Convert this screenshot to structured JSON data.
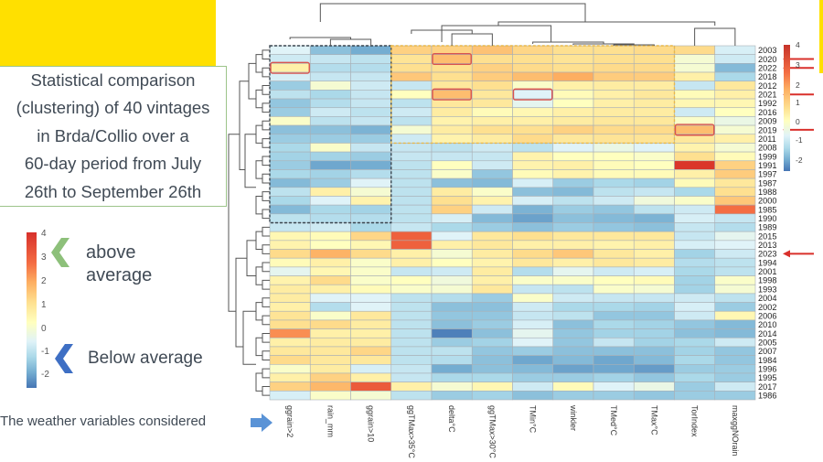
{
  "slide": {
    "description": "Statistical comparison\n(clustering) of 40 vintages\nin Brda/Collio over a\n60-day period from July\n26th to September 26th",
    "legend_above": "above\naverage",
    "legend_below": "Below average",
    "variables_note": "The weather variables considered",
    "legend_ticks": [
      "4",
      "3",
      "2",
      "1",
      "0",
      "-1",
      "-2"
    ],
    "colors": {
      "accent_yellow": "#ffe000",
      "box_border": "#9cc48a",
      "above_chevron": "#8dc07a",
      "below_chevron": "#3e6fc4",
      "note_arrow": "#5a93d6",
      "highlight_red": "#d9302b"
    }
  },
  "chart_data": {
    "type": "heatmap",
    "title": "",
    "xlabel": "",
    "ylabel": "",
    "color_scale": {
      "min": -2.5,
      "max": 4,
      "ticks": [
        4,
        3,
        2,
        1,
        0,
        -1,
        -2
      ],
      "palette": "RdYlBu reversed"
    },
    "columns": [
      "ggrain>2",
      "rain_mm",
      "ggrain>10",
      "ggTMax>35°C",
      "delta°C",
      "ggTMax>30°C",
      "TMin°C",
      "winkler",
      "TMed°C",
      "TMax°C",
      "TorIndex",
      "maxggNOrain"
    ],
    "rows": [
      "2003",
      "2020",
      "2022",
      "2018",
      "2012",
      "2021",
      "1992",
      "2016",
      "2009",
      "2019",
      "2011",
      "2008",
      "1999",
      "1991",
      "1997",
      "1987",
      "1988",
      "2000",
      "1985",
      "1990",
      "1989",
      "2015",
      "2013",
      "2023",
      "1994",
      "2001",
      "1998",
      "1993",
      "2004",
      "2002",
      "2006",
      "2010",
      "2014",
      "2005",
      "2007",
      "1984",
      "1996",
      "1995",
      "2017",
      "1986"
    ],
    "values": [
      [
        -0.2,
        -1.2,
        -1.5,
        1.5,
        1.5,
        1.8,
        1.4,
        1.2,
        1.2,
        1.3,
        1.3,
        -0.3
      ],
      [
        -0.4,
        -0.5,
        -0.6,
        1.1,
        1.9,
        1.2,
        1.2,
        1.1,
        1.2,
        1.2,
        0.2,
        -0.4
      ],
      [
        0.8,
        -0.7,
        -0.7,
        1.2,
        1.2,
        1.5,
        1.3,
        1.2,
        1.3,
        1.3,
        0.2,
        -1.3
      ],
      [
        -0.3,
        -0.5,
        -0.5,
        1.7,
        1.2,
        1.6,
        1.9,
        2.2,
        1.6,
        1.6,
        0.8,
        -0.8
      ],
      [
        -1.0,
        0.2,
        -0.4,
        -0.5,
        1.0,
        1.2,
        0.3,
        0.8,
        0.9,
        0.9,
        -0.5,
        1.0
      ],
      [
        -0.6,
        -0.8,
        -0.5,
        0.4,
        1.9,
        1.0,
        -0.2,
        0.5,
        0.8,
        1.0,
        0.5,
        0.8
      ],
      [
        -1.1,
        -0.7,
        -0.5,
        -0.6,
        1.0,
        1.0,
        -0.1,
        0.4,
        0.8,
        0.9,
        0.6,
        0.6
      ],
      [
        -1.0,
        -0.4,
        -0.6,
        -0.4,
        0.9,
        0.5,
        0.6,
        0.8,
        0.9,
        0.9,
        -0.4,
        0.4
      ],
      [
        0.3,
        -0.6,
        -0.5,
        -0.6,
        0.7,
        0.8,
        0.8,
        0.9,
        1.0,
        1.0,
        0.3,
        0.0
      ],
      [
        -1.2,
        -1.2,
        -1.4,
        0.2,
        0.9,
        1.2,
        1.2,
        1.5,
        1.3,
        1.3,
        1.9,
        0.2
      ],
      [
        -1.0,
        -1.0,
        -1.0,
        -0.4,
        0.7,
        0.9,
        1.3,
        1.0,
        1.1,
        1.1,
        1.0,
        0.8
      ],
      [
        -0.8,
        0.3,
        -0.5,
        -0.5,
        -0.6,
        -0.4,
        -0.6,
        -0.2,
        0.0,
        -0.2,
        0.7,
        0.2
      ],
      [
        -0.9,
        -0.9,
        -1.0,
        -0.5,
        -0.5,
        -0.5,
        0.7,
        0.4,
        0.4,
        0.3,
        1.2,
        0.5
      ],
      [
        -1.0,
        -1.6,
        -1.5,
        -0.6,
        0.4,
        -0.4,
        0.7,
        0.8,
        0.5,
        0.4,
        3.9,
        1.5
      ],
      [
        -0.8,
        -0.9,
        -0.7,
        -0.6,
        0.3,
        -1.1,
        0.5,
        0.7,
        0.5,
        0.5,
        0.8,
        1.6
      ],
      [
        -1.3,
        -1.0,
        -0.2,
        -0.6,
        -1.2,
        -1.3,
        -0.3,
        -1.0,
        -0.8,
        -0.9,
        0.5,
        1.0
      ],
      [
        -0.6,
        0.8,
        0.2,
        -0.6,
        0.9,
        0.3,
        -1.2,
        -1.3,
        -0.6,
        -0.5,
        -0.8,
        1.2
      ],
      [
        -0.8,
        -0.2,
        0.7,
        -0.6,
        1.2,
        0.7,
        -0.3,
        -0.6,
        -0.4,
        0.1,
        0.3,
        1.7
      ],
      [
        -1.3,
        -0.8,
        -0.9,
        -0.6,
        1.5,
        -0.4,
        -1.4,
        -1.0,
        -1.1,
        -0.6,
        -0.4,
        3.0
      ],
      [
        -0.6,
        -0.7,
        -0.7,
        -0.6,
        -0.3,
        -1.3,
        -1.7,
        -1.2,
        -1.3,
        -1.4,
        -0.3,
        -0.5
      ],
      [
        -0.5,
        -0.4,
        -0.8,
        -0.5,
        -0.8,
        -1.0,
        -1.2,
        -1.0,
        -1.1,
        -1.2,
        -0.5,
        -0.7
      ],
      [
        0.6,
        0.5,
        1.4,
        3.2,
        -0.2,
        1.0,
        1.2,
        1.0,
        1.0,
        1.0,
        -0.5,
        -0.1
      ],
      [
        0.7,
        0.4,
        0.6,
        3.2,
        0.8,
        1.0,
        0.8,
        0.8,
        0.7,
        0.8,
        -0.3,
        -0.2
      ],
      [
        1.3,
        2.1,
        1.3,
        0.8,
        0.2,
        0.9,
        1.3,
        1.7,
        1.0,
        0.8,
        -0.9,
        -0.4
      ],
      [
        0.5,
        0.8,
        0.3,
        0.8,
        0.4,
        0.7,
        1.0,
        0.8,
        1.0,
        0.9,
        -0.7,
        -0.6
      ],
      [
        -0.1,
        0.6,
        0.3,
        -0.5,
        -0.4,
        0.9,
        -0.7,
        -0.1,
        -0.4,
        -0.3,
        -0.8,
        -0.6
      ],
      [
        0.7,
        1.3,
        0.3,
        0.4,
        0.1,
        0.8,
        0.3,
        0.3,
        0.4,
        0.5,
        -0.9,
        0.3
      ],
      [
        0.9,
        0.8,
        0.5,
        0.3,
        0.2,
        1.0,
        -0.5,
        -0.6,
        0.3,
        0.2,
        -0.9,
        0.2
      ],
      [
        0.9,
        -0.2,
        -0.2,
        -0.6,
        -0.7,
        -1.0,
        0.3,
        -0.4,
        -0.5,
        -0.5,
        -0.4,
        -0.6
      ],
      [
        0.8,
        -0.7,
        -0.2,
        -0.6,
        -1.2,
        -1.2,
        -0.4,
        -0.8,
        -0.8,
        -0.9,
        -0.3,
        -1.0
      ],
      [
        1.1,
        0.3,
        1.0,
        -0.6,
        -1.1,
        -1.1,
        -0.5,
        -0.6,
        -1.1,
        -1.1,
        -0.4,
        0.6
      ],
      [
        1.2,
        1.3,
        0.9,
        -0.6,
        -1.2,
        -1.0,
        -0.3,
        -1.2,
        -0.8,
        -0.9,
        -1.1,
        -1.3
      ],
      [
        2.6,
        0.8,
        0.8,
        -0.6,
        -2.3,
        -1.2,
        -0.1,
        -1.1,
        -0.9,
        -0.9,
        -1.2,
        -1.3
      ],
      [
        0.8,
        0.9,
        0.9,
        -0.6,
        -1.0,
        -0.9,
        -0.2,
        -1.1,
        -0.5,
        -0.9,
        -0.8,
        -0.4
      ],
      [
        1.0,
        1.0,
        1.4,
        -0.6,
        -0.6,
        -1.1,
        -1.0,
        -1.2,
        -1.2,
        -1.2,
        -0.9,
        -1.1
      ],
      [
        1.3,
        1.0,
        1.0,
        -0.6,
        -0.7,
        -1.2,
        -1.6,
        -1.3,
        -1.6,
        -1.3,
        -0.8,
        -1.1
      ],
      [
        0.3,
        0.9,
        -0.3,
        -0.5,
        -1.5,
        -1.2,
        -1.3,
        -1.7,
        -1.6,
        -1.8,
        -1.0,
        -1.0
      ],
      [
        0.8,
        1.5,
        0.8,
        -0.5,
        -0.8,
        -0.8,
        -1.0,
        -1.0,
        -0.9,
        -1.1,
        -0.8,
        -1.0
      ],
      [
        1.5,
        2.0,
        3.3,
        0.8,
        0.2,
        0.6,
        -0.4,
        0.5,
        -0.2,
        0.0,
        -1.0,
        -0.4
      ],
      [
        -0.3,
        0.3,
        0.2,
        -0.6,
        -1.0,
        -0.9,
        -1.2,
        -1.0,
        -1.0,
        -1.1,
        -1.0,
        -1.0
      ]
    ],
    "highlighted_cells": [
      {
        "row": "2022",
        "column": "ggrain>2"
      },
      {
        "row": "2020",
        "column": "delta°C"
      },
      {
        "row": "2021",
        "column": "delta°C"
      },
      {
        "row": "2021",
        "column": "TMin°C"
      },
      {
        "row": "2019",
        "column": "TorIndex"
      }
    ],
    "arrowed_rows": [
      "2020",
      "2022",
      "2021",
      "2019",
      "2023"
    ],
    "clusters_outlined": [
      {
        "rows_from": "2003",
        "rows_to": "1990",
        "columns": [
          "ggrain>2",
          "rain_mm",
          "ggrain>10"
        ],
        "style": "dark-dashed"
      },
      {
        "rows_from": "2003",
        "rows_to": "2011",
        "columns": [
          "ggTMax>35°C",
          "delta°C",
          "ggTMax>30°C",
          "TMin°C",
          "winkler",
          "TMed°C",
          "TMax°C"
        ],
        "style": "yellow-dashed"
      }
    ],
    "legend": {
      "position": "right",
      "ticks": [
        4,
        3,
        2,
        1,
        0,
        -1,
        -2
      ]
    }
  }
}
